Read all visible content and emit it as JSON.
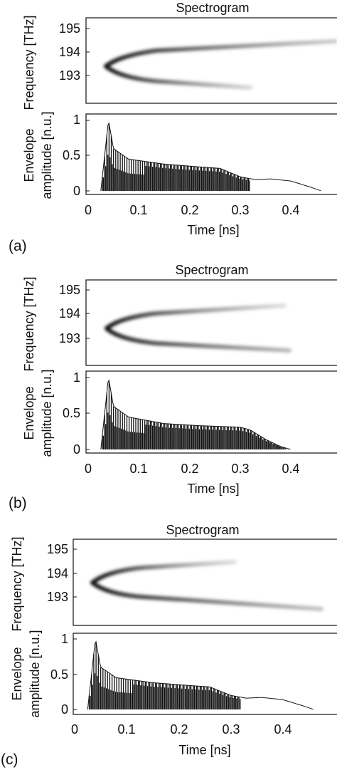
{
  "panels": [
    {
      "label": "(a)",
      "spectrogram": {
        "title": "Spectrogram",
        "ylabel": "Frequency [THz]",
        "yticks": [
          "195",
          "194",
          "193"
        ]
      },
      "envelope": {
        "ylabel_line1": "Envelope",
        "ylabel_line2": "amplitude [n.u.]",
        "yticks": [
          "1",
          "0.5",
          "0"
        ],
        "xticks": [
          "0",
          "0.1",
          "0.2",
          "0.3",
          "0.4"
        ],
        "xlabel": "Time [ns]"
      }
    },
    {
      "label": "(b)",
      "spectrogram": {
        "title": "Spectrogram",
        "ylabel": "Frequency [THz]",
        "yticks": [
          "195",
          "194",
          "193"
        ]
      },
      "envelope": {
        "ylabel_line1": "Envelope",
        "ylabel_line2": "amplitude [n.u.]",
        "yticks": [
          "1",
          "0.5",
          "0"
        ],
        "xticks": [
          "0",
          "0.1",
          "0.2",
          "0.3",
          "0.4"
        ],
        "xlabel": "Time [ns]"
      }
    },
    {
      "label": "(c)",
      "spectrogram": {
        "title": "Spectrogram",
        "ylabel": "Frequency [THz]",
        "yticks": [
          "195",
          "194",
          "193"
        ]
      },
      "envelope": {
        "ylabel_line1": "Envelope",
        "ylabel_line2": "amplitude [n.u.]",
        "yticks": [
          "1",
          "0.5",
          "0"
        ],
        "xticks": [
          "0",
          "0.1",
          "0.2",
          "0.3",
          "0.4"
        ],
        "xlabel": "Time [ns]"
      }
    }
  ],
  "chart_data": [
    {
      "type": "heatmap",
      "panel": "(a)",
      "title": "Spectrogram",
      "ylabel": "Frequency [THz]",
      "ylim": [
        192.5,
        195.3
      ],
      "xlim": [
        0,
        0.48
      ],
      "ridge": {
        "vertex_time_ns": 0.04,
        "vertex_freq_thz": 193.4,
        "upper_end": [
          0.48,
          194.4
        ],
        "lower_end": [
          0.3,
          192.6
        ]
      }
    },
    {
      "type": "line",
      "panel": "(a)",
      "xlabel": "Time [ns]",
      "ylabel": "Envelope amplitude [n.u.]",
      "xlim": [
        0,
        0.48
      ],
      "ylim": [
        0,
        1
      ],
      "envelope_points": [
        [
          0.025,
          0
        ],
        [
          0.04,
          1.0
        ],
        [
          0.05,
          0.6
        ],
        [
          0.08,
          0.45
        ],
        [
          0.15,
          0.38
        ],
        [
          0.22,
          0.34
        ],
        [
          0.26,
          0.32
        ],
        [
          0.3,
          0.2
        ],
        [
          0.33,
          0.16
        ],
        [
          0.36,
          0.17
        ],
        [
          0.4,
          0.14
        ],
        [
          0.44,
          0.05
        ],
        [
          0.46,
          0
        ]
      ],
      "oscillation_end_ns": 0.32
    },
    {
      "type": "heatmap",
      "panel": "(b)",
      "title": "Spectrogram",
      "ylabel": "Frequency [THz]",
      "ylim": [
        192.5,
        195.3
      ],
      "xlim": [
        0,
        0.48
      ],
      "ridge": {
        "vertex_time_ns": 0.04,
        "vertex_freq_thz": 193.45,
        "upper_end": [
          0.39,
          194.3
        ],
        "lower_end": [
          0.4,
          192.6
        ]
      }
    },
    {
      "type": "line",
      "panel": "(b)",
      "xlabel": "Time [ns]",
      "ylabel": "Envelope amplitude [n.u.]",
      "xlim": [
        0,
        0.48
      ],
      "ylim": [
        0,
        1
      ],
      "envelope_points": [
        [
          0.025,
          0
        ],
        [
          0.04,
          1.0
        ],
        [
          0.05,
          0.6
        ],
        [
          0.08,
          0.45
        ],
        [
          0.15,
          0.36
        ],
        [
          0.22,
          0.33
        ],
        [
          0.3,
          0.31
        ],
        [
          0.32,
          0.27
        ],
        [
          0.35,
          0.14
        ],
        [
          0.38,
          0.04
        ],
        [
          0.4,
          0
        ]
      ],
      "oscillation_end_ns": 0.39
    },
    {
      "type": "heatmap",
      "panel": "(c)",
      "title": "Spectrogram",
      "ylabel": "Frequency [THz]",
      "ylim": [
        192.5,
        195.3
      ],
      "xlim": [
        0,
        0.48
      ],
      "ridge": {
        "vertex_time_ns": 0.04,
        "vertex_freq_thz": 193.5,
        "upper_end": [
          0.32,
          194.3
        ],
        "lower_end": [
          0.48,
          192.6
        ]
      }
    },
    {
      "type": "line",
      "panel": "(c)",
      "xlabel": "Time [ns]",
      "ylabel": "Envelope amplitude [n.u.]",
      "xlim": [
        0,
        0.48
      ],
      "ylim": [
        0,
        1
      ],
      "envelope_points": [
        [
          0.025,
          0
        ],
        [
          0.04,
          1.0
        ],
        [
          0.05,
          0.6
        ],
        [
          0.08,
          0.45
        ],
        [
          0.15,
          0.38
        ],
        [
          0.22,
          0.34
        ],
        [
          0.26,
          0.32
        ],
        [
          0.3,
          0.2
        ],
        [
          0.33,
          0.16
        ],
        [
          0.36,
          0.17
        ],
        [
          0.4,
          0.14
        ],
        [
          0.44,
          0.05
        ],
        [
          0.46,
          0
        ]
      ],
      "oscillation_end_ns": 0.32
    }
  ]
}
